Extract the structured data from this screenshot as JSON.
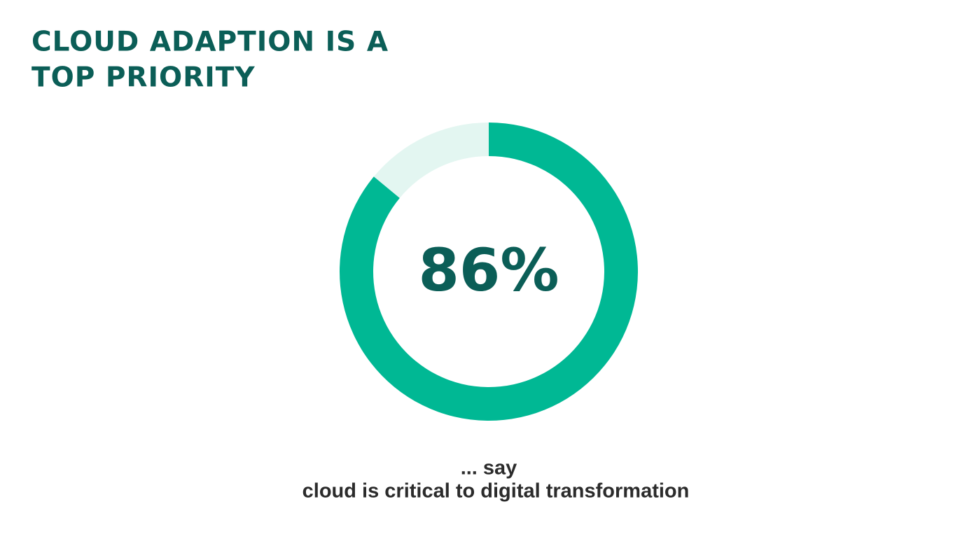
{
  "chart_data": {
    "type": "donut",
    "title": [
      "CLOUD ADAPTION IS A",
      "TOP PRIORITY"
    ],
    "categories": [
      null,
      null
    ],
    "values": [
      86,
      14
    ],
    "value_labels": [
      "86%",
      null
    ],
    "colors": [
      "#00b894",
      "#e3f6f1"
    ],
    "caption": [
      "... say",
      "cloud is critical to digital transformation"
    ]
  }
}
